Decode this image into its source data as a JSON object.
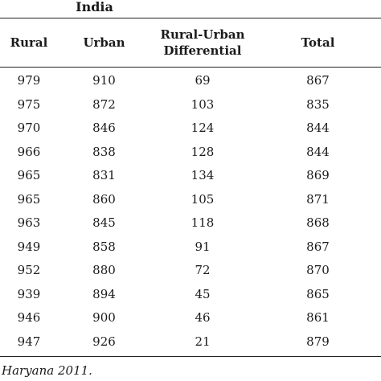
{
  "table": {
    "region_title": "India",
    "columns": [
      "Rural",
      "Urban",
      "Rural-Urban Differential",
      "Total"
    ],
    "rows": [
      [
        "979",
        "910",
        "69",
        "867"
      ],
      [
        "975",
        "872",
        "103",
        "835"
      ],
      [
        "970",
        "846",
        "124",
        "844"
      ],
      [
        "966",
        "838",
        "128",
        "844"
      ],
      [
        "965",
        "831",
        "134",
        "869"
      ],
      [
        "965",
        "860",
        "105",
        "871"
      ],
      [
        "963",
        "845",
        "118",
        "868"
      ],
      [
        "949",
        "858",
        "91",
        "867"
      ],
      [
        "952",
        "880",
        "72",
        "870"
      ],
      [
        "939",
        "894",
        "45",
        "865"
      ],
      [
        "946",
        "900",
        "46",
        "861"
      ],
      [
        "947",
        "926",
        "21",
        "879"
      ]
    ]
  },
  "footnote": "Haryana 2011."
}
